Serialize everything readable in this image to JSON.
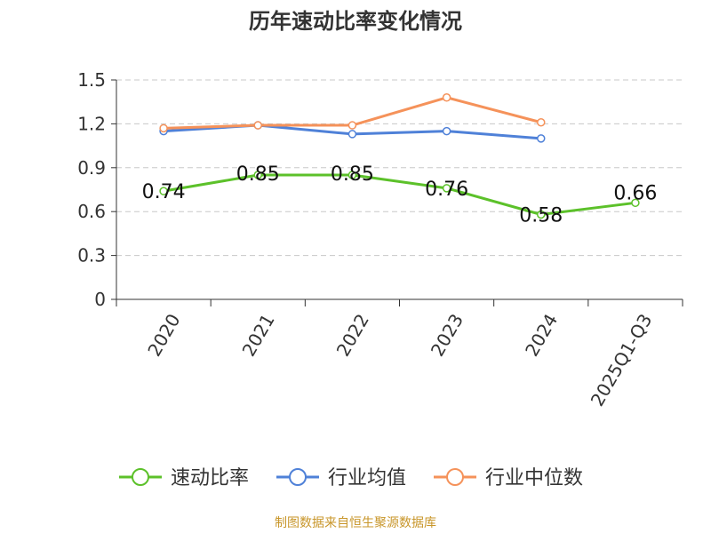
{
  "chart_data": {
    "type": "line",
    "title": "历年速动比率变化情况",
    "categories": [
      "2020",
      "2021",
      "2022",
      "2023",
      "2024",
      "2025Q1-Q3"
    ],
    "ylim": [
      0,
      1.5
    ],
    "yticks": [
      "0",
      "0.3",
      "0.6",
      "0.9",
      "1.2",
      "1.5"
    ],
    "grid": true,
    "legend_position": "bottom",
    "series": [
      {
        "name": "速动比率",
        "color": "#5cc12a",
        "values": [
          0.74,
          0.85,
          0.85,
          0.76,
          0.58,
          0.66
        ],
        "labels": [
          "0.74",
          "0.85",
          "0.85",
          "0.76",
          "0.58",
          "0.66"
        ]
      },
      {
        "name": "行业均值",
        "color": "#4f81d8",
        "values": [
          1.15,
          1.19,
          1.13,
          1.15,
          1.1,
          null
        ]
      },
      {
        "name": "行业中位数",
        "color": "#f5925a",
        "values": [
          1.17,
          1.19,
          1.19,
          1.38,
          1.21,
          null
        ]
      }
    ]
  },
  "footer": {
    "source": "制图数据来自恒生聚源数据库"
  }
}
